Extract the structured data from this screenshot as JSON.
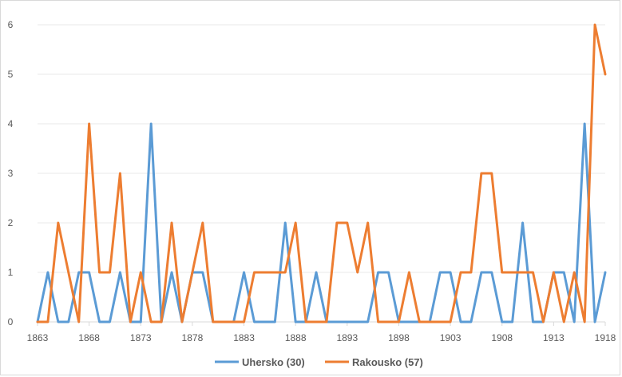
{
  "chart_data": {
    "type": "line",
    "title": "",
    "xlabel": "",
    "ylabel": "",
    "x": [
      1863,
      1864,
      1865,
      1866,
      1867,
      1868,
      1869,
      1870,
      1871,
      1872,
      1873,
      1874,
      1875,
      1876,
      1877,
      1878,
      1879,
      1880,
      1881,
      1882,
      1883,
      1884,
      1885,
      1886,
      1887,
      1888,
      1889,
      1890,
      1891,
      1892,
      1893,
      1894,
      1895,
      1896,
      1897,
      1898,
      1899,
      1900,
      1901,
      1902,
      1903,
      1904,
      1905,
      1906,
      1907,
      1908,
      1909,
      1910,
      1911,
      1912,
      1913,
      1914,
      1915,
      1916,
      1917,
      1918
    ],
    "xticks": [
      1863,
      1868,
      1873,
      1878,
      1883,
      1888,
      1893,
      1898,
      1903,
      1908,
      1913,
      1918
    ],
    "yticks": [
      0,
      1,
      2,
      3,
      4,
      5,
      6
    ],
    "ylim": [
      0,
      6
    ],
    "grid": "horizontal",
    "legend_position": "bottom",
    "series": [
      {
        "name": "Uhersko (30)",
        "color": "#5b9bd5",
        "values": [
          0,
          1,
          0,
          0,
          1,
          1,
          0,
          0,
          1,
          0,
          0,
          4,
          0,
          1,
          0,
          1,
          1,
          0,
          0,
          0,
          1,
          0,
          0,
          0,
          2,
          0,
          0,
          1,
          0,
          0,
          0,
          0,
          0,
          1,
          1,
          0,
          0,
          0,
          0,
          1,
          1,
          0,
          0,
          1,
          1,
          0,
          0,
          2,
          0,
          0,
          1,
          1,
          0,
          4,
          0,
          1
        ]
      },
      {
        "name": "Rakousko (57)",
        "color": "#ed7d31",
        "values": [
          0,
          0,
          2,
          1,
          0,
          4,
          1,
          1,
          3,
          0,
          1,
          0,
          0,
          2,
          0,
          1,
          2,
          0,
          0,
          0,
          0,
          1,
          1,
          1,
          1,
          2,
          0,
          0,
          0,
          2,
          2,
          1,
          2,
          0,
          0,
          0,
          1,
          0,
          0,
          0,
          0,
          1,
          1,
          3,
          3,
          1,
          1,
          1,
          1,
          0,
          1,
          0,
          1,
          0,
          6,
          5
        ]
      }
    ]
  }
}
